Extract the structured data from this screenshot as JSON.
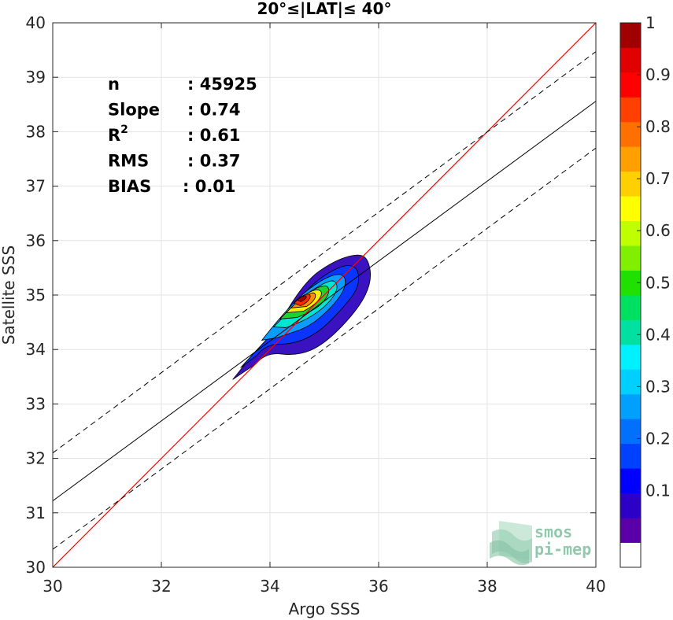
{
  "chart_data": {
    "type": "density-scatter",
    "title": "20°≤|LAT|≤ 40°",
    "xlabel": "Argo SSS",
    "ylabel": "Satellite SSS",
    "xlim": [
      30,
      40
    ],
    "ylim": [
      30,
      40
    ],
    "xticks": [
      "30",
      "32",
      "34",
      "36",
      "38",
      "40"
    ],
    "yticks": [
      "30",
      "31",
      "32",
      "33",
      "34",
      "35",
      "36",
      "37",
      "38",
      "39",
      "40"
    ],
    "grid": true,
    "stats": [
      {
        "key": "n",
        "value": ": 45925"
      },
      {
        "key": "Slope",
        "value": ": 0.74"
      },
      {
        "key": "R",
        "sup": "2",
        "value": ": 0.61"
      },
      {
        "key": "RMS",
        "value": ": 0.37"
      },
      {
        "key": "BIAS",
        "value": ": 0.01"
      }
    ],
    "lines": {
      "identity": {
        "color": "#ff0000",
        "slope": 1,
        "intercept": 0
      },
      "fit": {
        "color": "#000000",
        "points": [
          [
            30,
            31.22
          ],
          [
            40,
            38.56
          ]
        ]
      },
      "upper_bound": {
        "dashed": true,
        "points": [
          [
            30,
            32.1
          ],
          [
            40,
            39.47
          ]
        ]
      },
      "lower_bound": {
        "dashed": true,
        "points": [
          [
            30,
            30.33
          ],
          [
            40,
            37.7
          ]
        ]
      }
    },
    "density_center": {
      "x": 34.82,
      "y": 34.82
    },
    "colorbar": {
      "ticks": [
        "0.1",
        "0.2",
        "0.3",
        "0.4",
        "0.5",
        "0.6",
        "0.7",
        "0.8",
        "0.9",
        "1"
      ],
      "range": [
        0,
        1
      ],
      "colors": [
        "#ffffff",
        "#5a00a8",
        "#2d00c8",
        "#0000ff",
        "#0040ff",
        "#0070ff",
        "#00a0ff",
        "#00d0ff",
        "#00f0ff",
        "#00e0a0",
        "#00e060",
        "#20e000",
        "#80f000",
        "#c0ff00",
        "#ffff00",
        "#ffd000",
        "#ffa000",
        "#ff7000",
        "#ff4000",
        "#ff0000",
        "#e00000",
        "#a00000"
      ]
    }
  },
  "logo": {
    "line1": "smos",
    "line2": "pi-mep"
  }
}
